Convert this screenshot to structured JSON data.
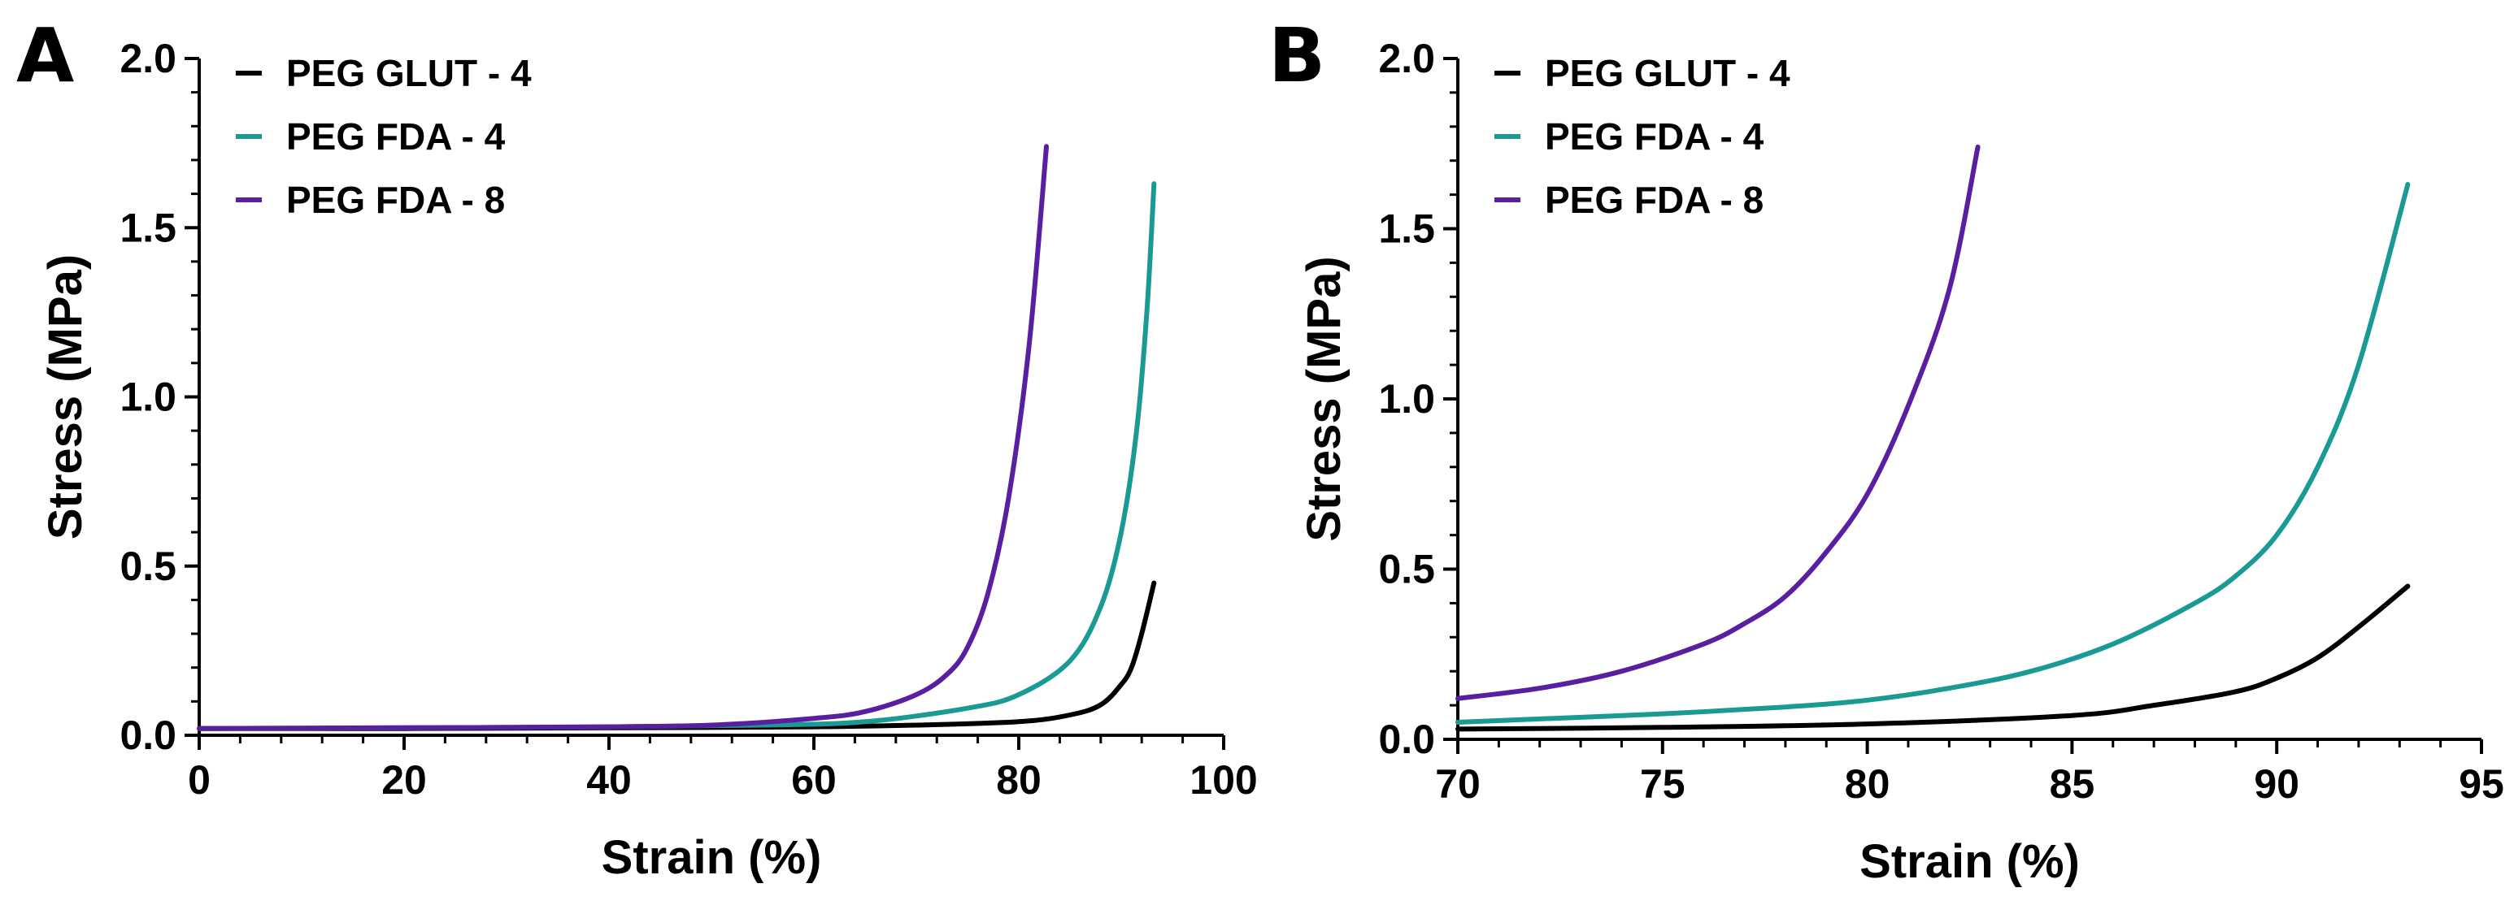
{
  "chart_data": [
    {
      "panel": "A",
      "type": "line",
      "xlabel": "Strain (%)",
      "ylabel": "Stress (MPa)",
      "xlim": [
        0,
        100
      ],
      "ylim": [
        0,
        2.0
      ],
      "xticks": [
        "0",
        "20",
        "40",
        "60",
        "80",
        "100"
      ],
      "yticks": [
        "0.0",
        "0.5",
        "1.0",
        "1.5",
        "2.0"
      ],
      "legend_position": "top-left",
      "series": [
        {
          "name": "PEG GLUT - 4",
          "color": "#000000",
          "x": [
            0,
            20,
            40,
            60,
            70,
            80,
            85,
            88,
            90,
            91,
            92,
            93.2
          ],
          "y": [
            0.02,
            0.02,
            0.022,
            0.025,
            0.03,
            0.04,
            0.06,
            0.09,
            0.15,
            0.2,
            0.3,
            0.45
          ]
        },
        {
          "name": "PEG FDA - 4",
          "color": "#1a9a94",
          "x": [
            0,
            20,
            40,
            55,
            65,
            75,
            80,
            85,
            88,
            90,
            91.5,
            92.5,
            93.2
          ],
          "y": [
            0.02,
            0.022,
            0.025,
            0.03,
            0.04,
            0.08,
            0.12,
            0.22,
            0.38,
            0.6,
            0.9,
            1.25,
            1.63
          ]
        },
        {
          "name": "PEG FDA - 8",
          "color": "#5a1fa0",
          "x": [
            0,
            20,
            40,
            50,
            60,
            65,
            70,
            73,
            75,
            77,
            79,
            81,
            82.7
          ],
          "y": [
            0.02,
            0.022,
            0.025,
            0.03,
            0.05,
            0.07,
            0.12,
            0.18,
            0.26,
            0.42,
            0.7,
            1.15,
            1.74
          ]
        }
      ]
    },
    {
      "panel": "B",
      "type": "line",
      "xlabel": "Strain (%)",
      "ylabel": "Stress (MPa)",
      "xlim": [
        70,
        95
      ],
      "ylim": [
        0,
        2.0
      ],
      "xticks": [
        "70",
        "75",
        "80",
        "85",
        "90",
        "95"
      ],
      "yticks": [
        "0.0",
        "0.5",
        "1.0",
        "1.5",
        "2.0"
      ],
      "legend_position": "top-left",
      "series": [
        {
          "name": "PEG GLUT - 4",
          "color": "#000000",
          "x": [
            70,
            75,
            80,
            85,
            87,
            89,
            90,
            91,
            92,
            93.2
          ],
          "y": [
            0.03,
            0.035,
            0.045,
            0.07,
            0.1,
            0.14,
            0.18,
            0.24,
            0.33,
            0.45
          ]
        },
        {
          "name": "PEG FDA - 4",
          "color": "#1a9a94",
          "x": [
            70,
            72,
            75,
            78,
            80,
            82,
            84,
            86,
            88,
            89,
            90,
            91,
            92,
            93.2
          ],
          "y": [
            0.05,
            0.06,
            0.075,
            0.095,
            0.115,
            0.15,
            0.2,
            0.28,
            0.4,
            0.48,
            0.6,
            0.8,
            1.1,
            1.63
          ]
        },
        {
          "name": "PEG FDA - 8",
          "color": "#5a1fa0",
          "x": [
            70,
            72,
            74,
            76,
            77,
            78,
            79,
            80,
            81,
            82,
            82.7
          ],
          "y": [
            0.12,
            0.15,
            0.2,
            0.28,
            0.34,
            0.42,
            0.55,
            0.72,
            0.98,
            1.32,
            1.74
          ]
        }
      ]
    }
  ]
}
